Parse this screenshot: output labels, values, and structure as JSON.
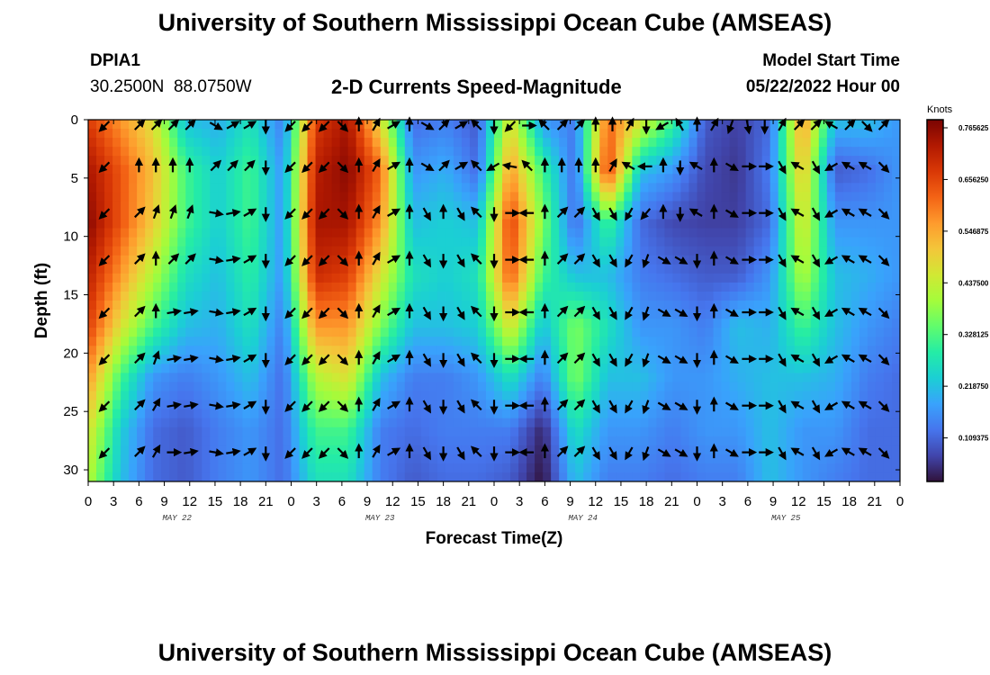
{
  "header": {
    "title": "University of Southern Mississippi Ocean Cube (AMSEAS)",
    "station_id": "DPIA1",
    "station_coords": "30.2500N  88.0750W",
    "chart_subtitle": "2-D Currents Speed-Magnitude",
    "model_label": "Model Start Time",
    "model_time": "05/22/2022 Hour 00"
  },
  "footer": {
    "title": "University of Southern Mississippi Ocean Cube (AMSEAS)"
  },
  "colors": {
    "ramp": [
      "#30123b",
      "#4145ab",
      "#4675ed",
      "#39a2fc",
      "#1bcfd4",
      "#24eca6",
      "#61fc6c",
      "#a4fc3b",
      "#d1e834",
      "#f3c63a",
      "#fe9b2d",
      "#f36315",
      "#d93806",
      "#b11901",
      "#7a0403"
    ]
  },
  "chart_data": {
    "type": "heatmap",
    "title": "2-D Currents Speed-Magnitude",
    "xlabel": "Forecast Time(Z)",
    "ylabel": "Depth (ft)",
    "x_tick_labels": [
      "0",
      "3",
      "6",
      "9",
      "12",
      "15",
      "18",
      "21",
      "0",
      "3",
      "6",
      "9",
      "12",
      "15",
      "18",
      "21",
      "0",
      "3",
      "6",
      "9",
      "12",
      "15",
      "18",
      "21",
      "0",
      "3",
      "6",
      "9",
      "12",
      "15",
      "18",
      "21",
      "0"
    ],
    "x_range_hours": [
      0,
      96
    ],
    "day_labels": [
      {
        "text": "MAY 22",
        "hour": 10.5
      },
      {
        "text": "MAY 23",
        "hour": 34.5
      },
      {
        "text": "MAY 24",
        "hour": 58.5
      },
      {
        "text": "MAY 25",
        "hour": 82.5
      }
    ],
    "y_ticks": [
      0,
      5,
      10,
      15,
      20,
      25,
      30
    ],
    "ylim": [
      0,
      31
    ],
    "y_inverted": true,
    "colorbar": {
      "label": "Knots",
      "range": [
        0,
        0.765625
      ],
      "ticks": [
        "0.765625",
        "0.656250",
        "0.546875",
        "0.437500",
        "0.328125",
        "0.218750",
        "0.109375"
      ]
    },
    "arrow_depths_ft": [
      0.5,
      4,
      8,
      12,
      16.5,
      20.5,
      24.5,
      28.5
    ],
    "arrow_hours": [
      2,
      6,
      8,
      10,
      12,
      15,
      17,
      19,
      21,
      24,
      26,
      28,
      30,
      32,
      34,
      36,
      38,
      40,
      42,
      44,
      46,
      48,
      50,
      52,
      54,
      56,
      58,
      60,
      62,
      64,
      66,
      68,
      70,
      72,
      74,
      76,
      78,
      80,
      82,
      84,
      86,
      88,
      90,
      92,
      94
    ],
    "arrow_directions_deg": [
      [
        225,
        45,
        45,
        45,
        45,
        120,
        60,
        60,
        180,
        225,
        225,
        225,
        135,
        0,
        30,
        60,
        0,
        120,
        45,
        60,
        315,
        180,
        225,
        90,
        315,
        45,
        45,
        0,
        0,
        30,
        180,
        240,
        330,
        0,
        30,
        200,
        170,
        180,
        30,
        45,
        45,
        300,
        45,
        135,
        45
      ],
      [
        225,
        0,
        0,
        0,
        0,
        45,
        45,
        45,
        180,
        225,
        225,
        225,
        135,
        0,
        30,
        60,
        0,
        120,
        45,
        60,
        315,
        240,
        280,
        315,
        0,
        0,
        0,
        0,
        30,
        300,
        270,
        0,
        180,
        300,
        0,
        120,
        90,
        90,
        150,
        300,
        150,
        240,
        300,
        300,
        135
      ],
      [
        225,
        45,
        20,
        20,
        20,
        100,
        80,
        60,
        180,
        225,
        225,
        225,
        135,
        0,
        30,
        60,
        0,
        150,
        0,
        150,
        315,
        180,
        90,
        270,
        0,
        45,
        45,
        150,
        150,
        210,
        220,
        0,
        180,
        300,
        0,
        120,
        90,
        90,
        150,
        300,
        150,
        240,
        300,
        300,
        135
      ],
      [
        225,
        45,
        0,
        45,
        45,
        100,
        80,
        60,
        180,
        225,
        225,
        225,
        135,
        0,
        30,
        60,
        0,
        150,
        180,
        150,
        315,
        180,
        90,
        270,
        0,
        45,
        45,
        150,
        150,
        210,
        200,
        120,
        120,
        180,
        0,
        120,
        90,
        90,
        150,
        300,
        150,
        240,
        300,
        300,
        135
      ],
      [
        225,
        45,
        0,
        80,
        80,
        100,
        80,
        60,
        180,
        225,
        225,
        225,
        135,
        0,
        30,
        60,
        0,
        150,
        180,
        150,
        315,
        180,
        90,
        270,
        0,
        45,
        45,
        150,
        150,
        210,
        200,
        120,
        120,
        180,
        0,
        120,
        90,
        90,
        150,
        300,
        150,
        240,
        300,
        300,
        135
      ],
      [
        225,
        45,
        20,
        80,
        80,
        100,
        80,
        60,
        180,
        225,
        225,
        225,
        135,
        0,
        30,
        60,
        0,
        150,
        180,
        150,
        315,
        180,
        90,
        270,
        0,
        45,
        45,
        150,
        150,
        210,
        200,
        120,
        120,
        180,
        0,
        120,
        90,
        90,
        150,
        300,
        150,
        240,
        300,
        300,
        135
      ],
      [
        225,
        45,
        30,
        80,
        80,
        100,
        80,
        60,
        180,
        225,
        225,
        225,
        135,
        0,
        30,
        60,
        0,
        150,
        180,
        150,
        315,
        180,
        90,
        270,
        0,
        45,
        45,
        150,
        150,
        210,
        200,
        120,
        120,
        180,
        0,
        120,
        90,
        90,
        150,
        300,
        150,
        240,
        300,
        300,
        135
      ],
      [
        225,
        45,
        30,
        90,
        80,
        100,
        80,
        60,
        180,
        225,
        225,
        225,
        135,
        0,
        30,
        60,
        0,
        150,
        180,
        150,
        315,
        180,
        90,
        270,
        0,
        45,
        45,
        150,
        150,
        210,
        200,
        120,
        120,
        180,
        0,
        120,
        90,
        90,
        150,
        300,
        150,
        240,
        300,
        300,
        135
      ]
    ],
    "speed_grid_knots": [
      [
        0.65,
        0.55,
        0.45,
        0.2,
        0.18,
        0.25,
        0.12,
        0.65,
        0.72,
        0.45,
        0.1,
        0.12,
        0.08,
        0.45,
        0.15,
        0.12,
        0.6,
        0.45,
        0.3,
        0.08,
        0.05,
        0.1,
        0.55,
        0.2,
        0.2,
        0.15
      ],
      [
        0.72,
        0.62,
        0.5,
        0.3,
        0.22,
        0.3,
        0.15,
        0.7,
        0.75,
        0.6,
        0.15,
        0.18,
        0.1,
        0.55,
        0.3,
        0.1,
        0.65,
        0.2,
        0.15,
        0.06,
        0.04,
        0.12,
        0.5,
        0.08,
        0.1,
        0.15
      ],
      [
        0.75,
        0.62,
        0.48,
        0.3,
        0.22,
        0.3,
        0.15,
        0.72,
        0.72,
        0.55,
        0.2,
        0.22,
        0.2,
        0.65,
        0.35,
        0.1,
        0.3,
        0.1,
        0.06,
        0.05,
        0.05,
        0.1,
        0.45,
        0.15,
        0.15,
        0.15
      ],
      [
        0.7,
        0.55,
        0.4,
        0.25,
        0.2,
        0.28,
        0.15,
        0.68,
        0.65,
        0.45,
        0.25,
        0.22,
        0.25,
        0.62,
        0.3,
        0.2,
        0.2,
        0.12,
        0.1,
        0.08,
        0.08,
        0.15,
        0.4,
        0.2,
        0.18,
        0.15
      ],
      [
        0.65,
        0.45,
        0.3,
        0.2,
        0.18,
        0.25,
        0.12,
        0.55,
        0.55,
        0.35,
        0.2,
        0.2,
        0.22,
        0.45,
        0.2,
        0.35,
        0.25,
        0.15,
        0.15,
        0.12,
        0.2,
        0.18,
        0.3,
        0.2,
        0.15,
        0.12
      ],
      [
        0.55,
        0.3,
        0.15,
        0.12,
        0.15,
        0.2,
        0.1,
        0.4,
        0.45,
        0.2,
        0.12,
        0.12,
        0.15,
        0.25,
        0.12,
        0.35,
        0.2,
        0.2,
        0.15,
        0.15,
        0.18,
        0.2,
        0.2,
        0.18,
        0.12,
        0.1
      ],
      [
        0.45,
        0.22,
        0.1,
        0.08,
        0.12,
        0.15,
        0.1,
        0.3,
        0.3,
        0.12,
        0.1,
        0.12,
        0.12,
        0.12,
        0.02,
        0.25,
        0.15,
        0.15,
        0.12,
        0.15,
        0.15,
        0.2,
        0.15,
        0.15,
        0.1,
        0.1
      ],
      [
        0.4,
        0.2,
        0.1,
        0.08,
        0.12,
        0.15,
        0.1,
        0.25,
        0.25,
        0.12,
        0.08,
        0.1,
        0.1,
        0.08,
        0.0,
        0.2,
        0.12,
        0.12,
        0.1,
        0.12,
        0.12,
        0.2,
        0.15,
        0.12,
        0.1,
        0.1
      ]
    ]
  }
}
